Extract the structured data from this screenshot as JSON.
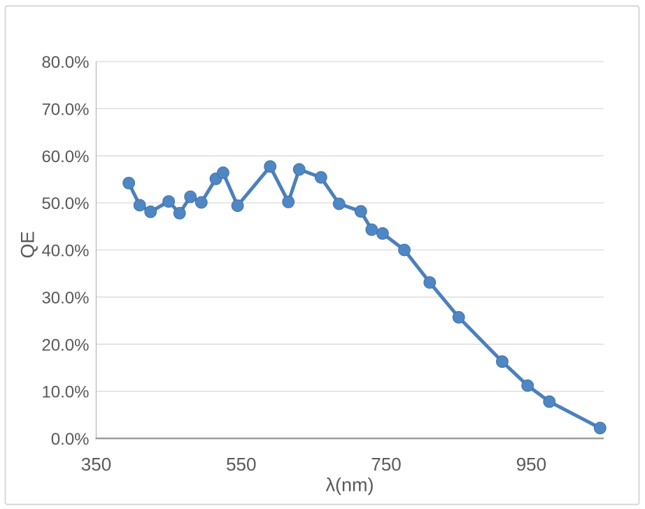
{
  "colors": {
    "background": "#ffffff",
    "frame_border": "#d2d2d2",
    "gridline": "#d9d9d9",
    "y_axis_line": "#bfbfbf",
    "x_axis_line": "#9e9e9e",
    "text": "#595959",
    "series_line": "#4b80bd",
    "marker_fill": "#4f87c5",
    "marker_edge": "#3f72a8"
  },
  "chart_data": {
    "type": "line",
    "title": "",
    "xlabel": "λ(nm)",
    "ylabel": "QE",
    "xlim": [
      350,
      1050
    ],
    "ylim": [
      0,
      80
    ],
    "grid": "horizontal-major",
    "legend": "none",
    "x_ticks": {
      "values": [
        350,
        550,
        750,
        950
      ],
      "labels": [
        "350",
        "550",
        "750",
        "950"
      ]
    },
    "y_ticks": {
      "values": [
        0,
        10,
        20,
        30,
        40,
        50,
        60,
        70,
        80
      ],
      "labels": [
        "0.0%",
        "10.0%",
        "20.0%",
        "30.0%",
        "40.0%",
        "50.0%",
        "60.0%",
        "70.0%",
        "80.0%"
      ]
    },
    "series": [
      {
        "name": "QE",
        "marker": "circle",
        "x": [
          395,
          410,
          425,
          450,
          465,
          480,
          495,
          515,
          525,
          545,
          590,
          615,
          630,
          660,
          685,
          715,
          730,
          745,
          775,
          810,
          850,
          910,
          945,
          975,
          1045
        ],
        "y_percent": [
          54.2,
          49.5,
          48.1,
          50.3,
          47.8,
          51.3,
          50.1,
          55.1,
          56.4,
          49.4,
          57.7,
          50.2,
          57.1,
          55.4,
          49.8,
          48.2,
          44.3,
          43.5,
          40.0,
          33.1,
          25.7,
          16.3,
          11.2,
          7.8,
          2.2
        ]
      }
    ]
  }
}
